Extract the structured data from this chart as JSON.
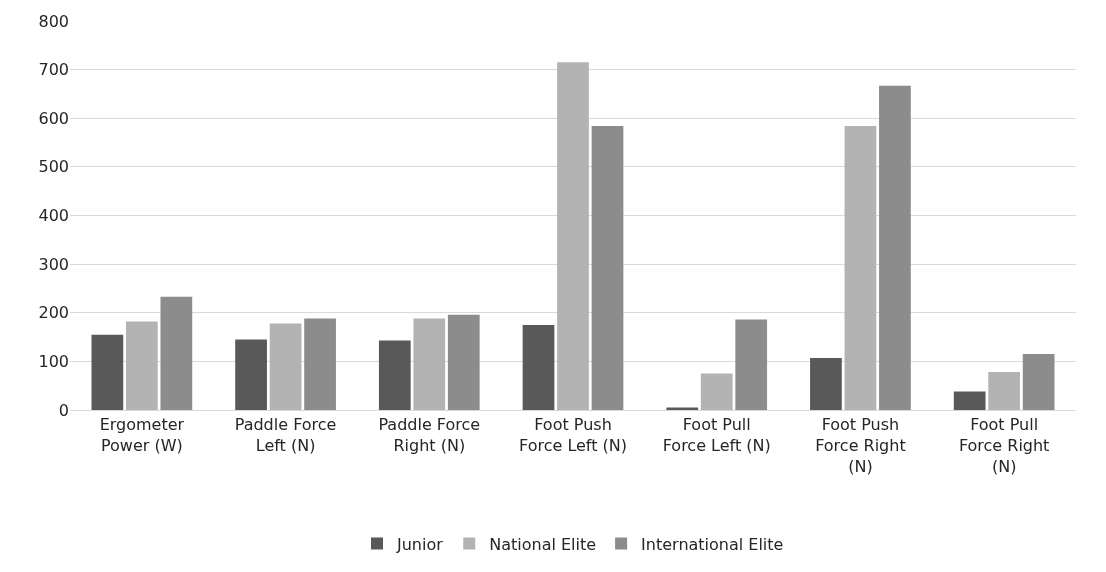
{
  "chart_data": {
    "type": "bar",
    "categories": [
      "Ergometer Power (W)",
      "Paddle Force Left (N)",
      "Paddle Force Right (N)",
      "Foot Push Force Left (N)",
      "Foot Pull Force Left (N)",
      "Foot Push Force Right (N)",
      "Foot Pull Force Right (N)"
    ],
    "series": [
      {
        "name": "Junior",
        "color": "#595959",
        "values": [
          155,
          145,
          143,
          175,
          5,
          107,
          38
        ]
      },
      {
        "name": "National Elite",
        "color": "#b3b3b3",
        "values": [
          182,
          178,
          188,
          715,
          75,
          584,
          78
        ]
      },
      {
        "name": "International Elite",
        "color": "#8c8c8c",
        "values": [
          233,
          188,
          196,
          584,
          186,
          667,
          115
        ]
      }
    ],
    "ylim": [
      0,
      800
    ],
    "yticks": [
      0,
      100,
      200,
      300,
      400,
      500,
      600,
      700,
      800
    ],
    "grid": "y",
    "legend": "bottom"
  }
}
